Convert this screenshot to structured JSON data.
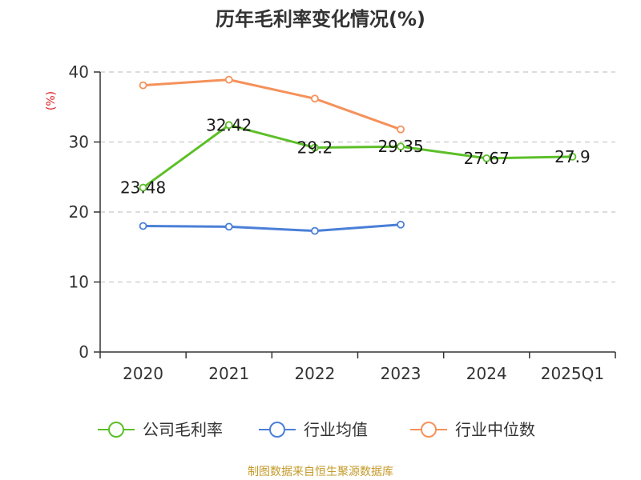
{
  "chart_data": {
    "type": "line",
    "title": "历年毛利率变化情况(%)",
    "ylabel": "(%)",
    "xlabel": "",
    "categories": [
      "2020",
      "2021",
      "2022",
      "2023",
      "2024",
      "2025Q1"
    ],
    "ylim": [
      0,
      40
    ],
    "yticks": [
      0,
      10,
      20,
      30,
      40
    ],
    "grid": true,
    "legend_position": "bottom",
    "series": [
      {
        "name": "公司毛利率",
        "color": "#5cbf28",
        "values": [
          23.48,
          32.42,
          29.2,
          29.35,
          27.67,
          27.9
        ],
        "labels": [
          "23.48",
          "32.42",
          "29.2",
          "29.35",
          "27.67",
          "27.9"
        ]
      },
      {
        "name": "行业均值",
        "color": "#4a7fd8",
        "values": [
          18.0,
          17.9,
          17.3,
          18.2,
          null,
          null
        ]
      },
      {
        "name": "行业中位数",
        "color": "#f5915a",
        "values": [
          38.1,
          38.9,
          36.2,
          31.8,
          null,
          null
        ]
      }
    ]
  },
  "footer": {
    "source": "制图数据来自恒生聚源数据库"
  }
}
